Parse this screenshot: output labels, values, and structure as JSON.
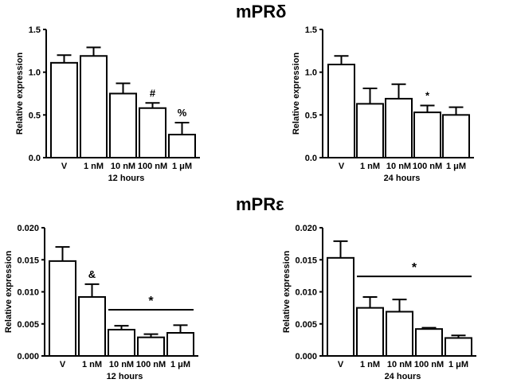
{
  "titles": {
    "top": "mPRδ",
    "bottom": "mPRε"
  },
  "chart_data": [
    {
      "type": "bar",
      "panel": "mPRδ 12 hours",
      "categories": [
        "V",
        "1 nM",
        "10 nM",
        "100 nM",
        "1 μM"
      ],
      "values": [
        1.11,
        1.19,
        0.75,
        0.58,
        0.27
      ],
      "errors": [
        0.09,
        0.1,
        0.12,
        0.06,
        0.14
      ],
      "annotations": [
        "",
        "",
        "",
        "#",
        "%"
      ],
      "bracket": null,
      "xlabel": "12 hours",
      "ylabel": "Relative expression",
      "ylim": [
        0,
        1.5
      ],
      "yticks": [
        "0.0",
        "0.5",
        "1.0",
        "1.5"
      ]
    },
    {
      "type": "bar",
      "panel": "mPRδ 24 hours",
      "categories": [
        "V",
        "1 nM",
        "10 nM",
        "100 nM",
        "1 μM"
      ],
      "values": [
        1.09,
        0.63,
        0.69,
        0.53,
        0.5
      ],
      "errors": [
        0.1,
        0.18,
        0.17,
        0.08,
        0.09
      ],
      "annotations": [
        "",
        "",
        "",
        "*",
        ""
      ],
      "bracket": null,
      "xlabel": "24 hours",
      "ylabel": "Relative expression",
      "ylim": [
        0,
        1.5
      ],
      "yticks": [
        "0.0",
        "0.5",
        "1.0",
        "1.5"
      ]
    },
    {
      "type": "bar",
      "panel": "mPRε 12 hours",
      "categories": [
        "V",
        "1 nM",
        "10 nM",
        "100 nM",
        "1 μM"
      ],
      "values": [
        0.0148,
        0.0092,
        0.0041,
        0.0029,
        0.0036
      ],
      "errors": [
        0.0022,
        0.002,
        0.0006,
        0.0005,
        0.0012
      ],
      "annotations": [
        "",
        "&",
        "",
        "",
        ""
      ],
      "bracket": {
        "from": 2,
        "to": 4,
        "y": 0.0072,
        "label": "*"
      },
      "xlabel": "12 hours",
      "ylabel": "Relative expression",
      "ylim": [
        0,
        0.02
      ],
      "yticks": [
        "0.000",
        "0.005",
        "0.010",
        "0.015",
        "0.020"
      ]
    },
    {
      "type": "bar",
      "panel": "mPRε 24 hours",
      "categories": [
        "V",
        "1 nM",
        "10 nM",
        "100 nM",
        "1 μM"
      ],
      "values": [
        0.0153,
        0.0075,
        0.0069,
        0.0042,
        0.0028
      ],
      "errors": [
        0.0026,
        0.0017,
        0.0019,
        0.0002,
        0.0004
      ],
      "annotations": [
        "",
        "",
        "",
        "",
        ""
      ],
      "bracket": {
        "from": 1,
        "to": 4,
        "y": 0.0124,
        "label": "*"
      },
      "xlabel": "24 hours",
      "ylabel": "Relative expression",
      "ylim": [
        0,
        0.02
      ],
      "yticks": [
        "0.000",
        "0.005",
        "0.010",
        "0.015",
        "0.020"
      ]
    }
  ]
}
